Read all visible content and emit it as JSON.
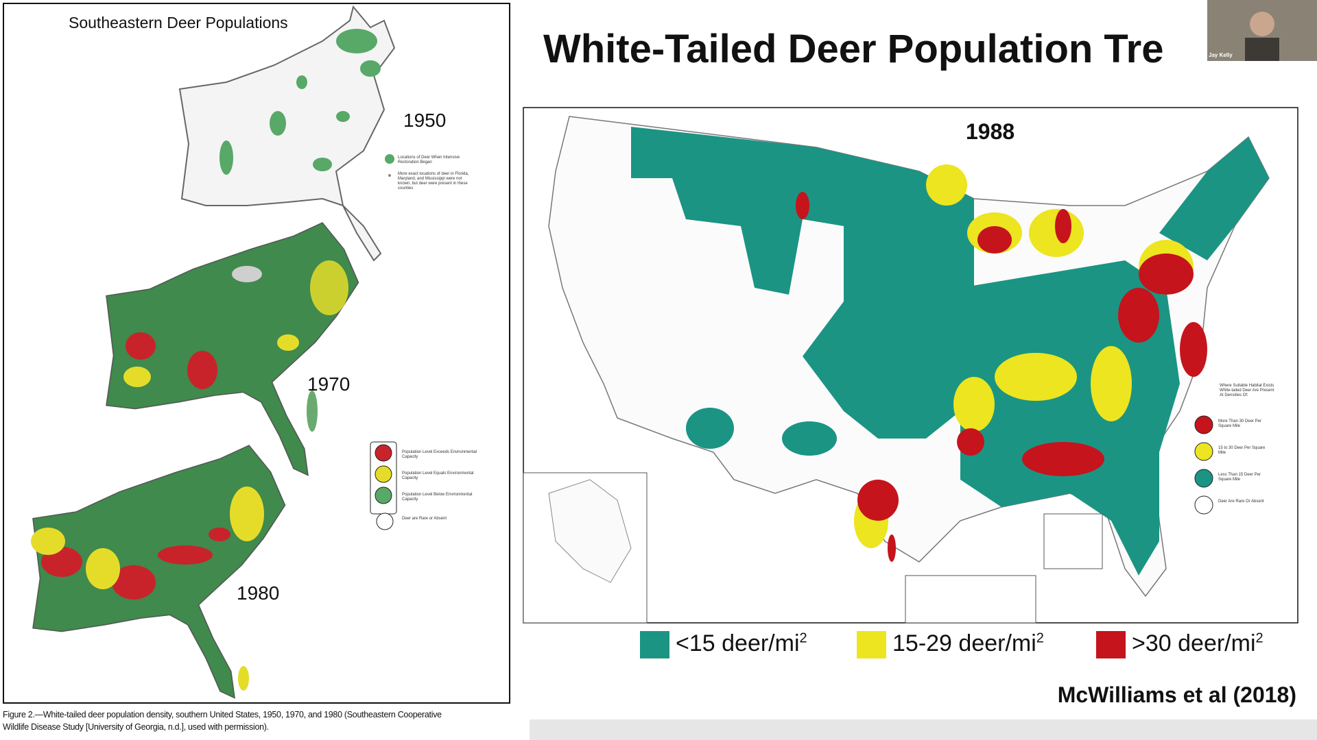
{
  "webcam": {
    "name": "Jay Kelly"
  },
  "slide": {
    "title": "White-Tailed Deer Population Tre",
    "left_figure": {
      "title": "Southeastern Deer Populations",
      "years": [
        "1950",
        "1970",
        "1980"
      ],
      "legend_1950": [
        "Locations of Deer When Intensive Restoration Began",
        "More exact locations of deer in Florida, Maryland, and Mississippi were not known, but deer were present in these counties"
      ],
      "legend_levels": [
        "Population Level Exceeds Environmental Capacity",
        "Population Level Equals Environmental Capacity",
        "Population Level Below Environmental Capacity",
        "Deer are Rare or Absent"
      ],
      "caption": [
        "Figure 2.—White-tailed deer population density, southern United States, 1950, 1970, and 1980 (Southeastern Cooperative",
        "Wildlife Disease Study [University of Georgia, n.d.], used with permission)."
      ]
    },
    "right_figure": {
      "year": "1988",
      "legend_title": "Where Suitable Habitat Exists White-tailed Deer Are Present At Densities Of:",
      "legend": [
        "More Than 30 Deer Per Square Mile",
        "15 to 30 Deer Per Square Mile",
        "Less Than 15 Deer Per Square Mile",
        "Deer Are Rare Or Absent"
      ]
    },
    "legend": [
      {
        "label": "<15 deer/mi",
        "sup": "2",
        "color": "#1b9484"
      },
      {
        "label": "15-29 deer/mi",
        "sup": "2",
        "color": "#ece51f"
      },
      {
        "label": ">30 deer/mi",
        "sup": "2",
        "color": "#c5141c"
      }
    ],
    "citation": "McWilliams et al (2018)"
  }
}
